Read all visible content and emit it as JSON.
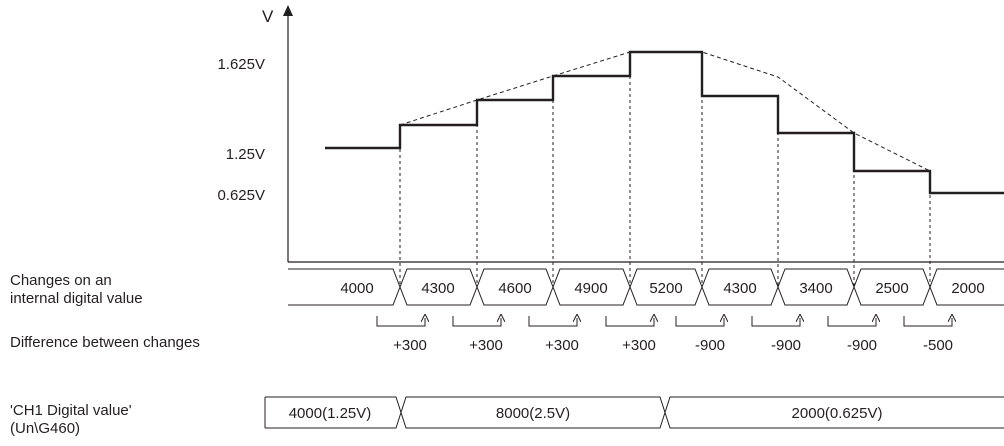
{
  "axis": {
    "y_label": "V",
    "y_ticks": [
      "1.625V",
      "1.25V",
      "0.625V"
    ]
  },
  "row_labels": {
    "internal_changes": [
      "Changes on an",
      "internal digital value"
    ],
    "difference": "Difference between changes",
    "digital_value": [
      "'CH1 Digital value'",
      "(Un\\G460)"
    ]
  },
  "internal_values": [
    "4000",
    "4300",
    "4600",
    "4900",
    "5200",
    "4300",
    "3400",
    "2500",
    "2000"
  ],
  "differences": [
    "+300",
    "+300",
    "+300",
    "+300",
    "-900",
    "-900",
    "-900",
    "-500"
  ],
  "digital_values": [
    "4000(1.25V)",
    "8000(2.5V)",
    "2000(0.625V)"
  ],
  "colors": {
    "line": "#231f20",
    "background": "#ffffff"
  }
}
